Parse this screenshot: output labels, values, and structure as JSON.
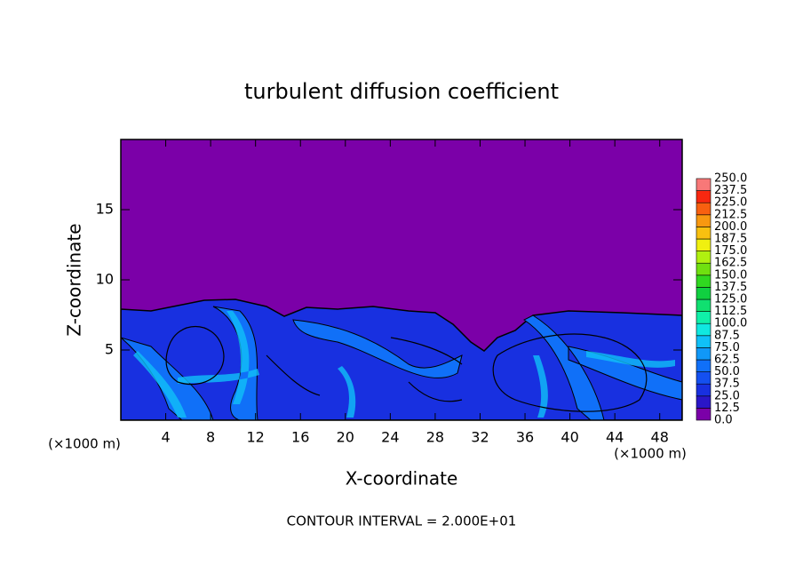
{
  "chart_data": {
    "type": "contour",
    "title": "turbulent diffusion coefficient",
    "x_label": "X-coordinate",
    "y_label": "Z-coordinate",
    "x_unit_left": "(×1000 m)",
    "x_unit_right": "(×1000 m)",
    "footnote": "CONTOUR INTERVAL = 2.000E+01",
    "xlim": [
      0,
      50
    ],
    "ylim": [
      0,
      20
    ],
    "xticks": [
      4,
      8,
      12,
      16,
      20,
      24,
      28,
      32,
      36,
      40,
      44,
      48
    ],
    "yticks": [
      5,
      10,
      15
    ],
    "grid": false,
    "colorbar": {
      "levels": [
        {
          "value": 0,
          "label": "0.0"
        },
        {
          "value": 12.5,
          "label": "12.5"
        },
        {
          "value": 25,
          "label": "25.0"
        },
        {
          "value": 37.5,
          "label": "37.5"
        },
        {
          "value": 50,
          "label": "50.0"
        },
        {
          "value": 62.5,
          "label": "62.5"
        },
        {
          "value": 75,
          "label": "75.0"
        },
        {
          "value": 87.5,
          "label": "87.5"
        },
        {
          "value": 100,
          "label": "100.0"
        },
        {
          "value": 112.5,
          "label": "112.5"
        },
        {
          "value": 125,
          "label": "125.0"
        },
        {
          "value": 137.5,
          "label": "137.5"
        },
        {
          "value": 150,
          "label": "150.0"
        },
        {
          "value": 162.5,
          "label": "162.5"
        },
        {
          "value": 175,
          "label": "175.0"
        },
        {
          "value": 187.5,
          "label": "187.5"
        },
        {
          "value": 200,
          "label": "200.0"
        },
        {
          "value": 212.5,
          "label": "212.5"
        },
        {
          "value": 225,
          "label": "225.0"
        },
        {
          "value": 237.5,
          "label": "237.5"
        },
        {
          "value": 250,
          "label": "250.0"
        }
      ],
      "colors": [
        "#7b00a8",
        "#2a16c8",
        "#1830e0",
        "#1450f0",
        "#1070f8",
        "#1098f8",
        "#10c0f8",
        "#10e8e0",
        "#10f0a8",
        "#10e070",
        "#10d040",
        "#30d820",
        "#70e010",
        "#b0f010",
        "#f0f010",
        "#f8c010",
        "#f89810",
        "#f86010",
        "#f82810",
        "#f87878"
      ]
    }
  }
}
